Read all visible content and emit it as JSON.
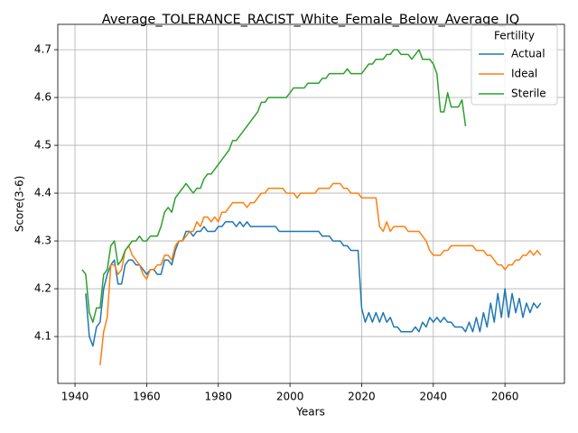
{
  "chart_data": {
    "type": "line",
    "title": "Average_TOLERANCE_RACIST_White_Female_Below_Average_IQ",
    "xlabel": "Years",
    "ylabel": "Score(3-6)",
    "legend_title": "Fertility",
    "legend": "upper right",
    "grid": true,
    "xlim": [
      1935.2,
      2076.6
    ],
    "ylim": [
      4.002,
      4.753
    ],
    "xticks": [
      1940,
      1960,
      1980,
      2000,
      2020,
      2040,
      2060
    ],
    "yticks": [
      4.1,
      4.2,
      4.3,
      4.4,
      4.5,
      4.6,
      4.7
    ],
    "x": [
      1942,
      1943,
      1944,
      1945,
      1946,
      1947,
      1948,
      1949,
      1950,
      1951,
      1952,
      1953,
      1954,
      1955,
      1956,
      1957,
      1958,
      1959,
      1960,
      1961,
      1962,
      1963,
      1964,
      1965,
      1966,
      1967,
      1968,
      1969,
      1970,
      1971,
      1972,
      1973,
      1974,
      1975,
      1976,
      1977,
      1978,
      1979,
      1980,
      1981,
      1982,
      1983,
      1984,
      1985,
      1986,
      1987,
      1988,
      1989,
      1990,
      1991,
      1992,
      1993,
      1994,
      1995,
      1996,
      1997,
      1998,
      1999,
      2000,
      2001,
      2002,
      2003,
      2004,
      2005,
      2006,
      2007,
      2008,
      2009,
      2010,
      2011,
      2012,
      2013,
      2014,
      2015,
      2016,
      2017,
      2018,
      2019,
      2020,
      2021,
      2022,
      2023,
      2024,
      2025,
      2026,
      2027,
      2028,
      2029,
      2030,
      2031,
      2032,
      2033,
      2034,
      2035,
      2036,
      2037,
      2038,
      2039,
      2040,
      2041,
      2042,
      2043,
      2044,
      2045,
      2046,
      2047,
      2048,
      2049,
      2050,
      2051,
      2052,
      2053,
      2054,
      2055,
      2056,
      2057,
      2058,
      2059,
      2060,
      2061,
      2062,
      2063,
      2064,
      2065,
      2066,
      2067,
      2068,
      2069,
      2070
    ],
    "series": [
      {
        "name": "Actual",
        "color": "#1f77b4",
        "values": [
          null,
          4.19,
          4.1,
          4.08,
          4.12,
          4.13,
          4.2,
          4.23,
          4.25,
          4.26,
          4.21,
          4.21,
          4.25,
          4.26,
          4.26,
          4.25,
          4.25,
          4.24,
          4.23,
          4.24,
          4.24,
          4.23,
          4.23,
          4.26,
          4.26,
          4.25,
          4.28,
          4.3,
          4.3,
          4.32,
          4.32,
          4.31,
          4.32,
          4.32,
          4.33,
          4.32,
          4.32,
          4.32,
          4.33,
          4.33,
          4.34,
          4.34,
          4.34,
          4.33,
          4.34,
          4.33,
          4.34,
          4.33,
          4.33,
          4.33,
          4.33,
          4.33,
          4.33,
          4.33,
          4.33,
          4.32,
          4.32,
          4.32,
          4.32,
          4.32,
          4.32,
          4.32,
          4.32,
          4.32,
          4.32,
          4.32,
          4.32,
          4.31,
          4.31,
          4.31,
          4.3,
          4.3,
          4.3,
          4.29,
          4.29,
          4.28,
          4.28,
          4.28,
          4.16,
          4.13,
          4.15,
          4.13,
          4.15,
          4.13,
          4.15,
          4.13,
          4.14,
          4.12,
          4.12,
          4.11,
          4.11,
          4.11,
          4.11,
          4.12,
          4.11,
          4.13,
          4.12,
          4.14,
          4.13,
          4.14,
          4.13,
          4.14,
          4.13,
          4.13,
          4.12,
          4.12,
          4.12,
          4.11,
          4.13,
          4.11,
          4.14,
          4.11,
          4.15,
          4.12,
          4.17,
          4.13,
          4.19,
          4.14,
          4.2,
          4.14,
          4.19,
          4.15,
          4.18,
          4.14,
          4.17,
          4.15,
          4.17,
          4.16,
          4.17
        ]
      },
      {
        "name": "Ideal",
        "color": "#ff7f0e",
        "values": [
          null,
          null,
          null,
          null,
          null,
          4.04,
          4.11,
          4.14,
          4.25,
          4.25,
          4.23,
          4.24,
          4.28,
          4.29,
          4.27,
          4.26,
          4.25,
          4.23,
          4.22,
          4.24,
          4.24,
          4.25,
          4.25,
          4.27,
          4.27,
          4.26,
          4.29,
          4.3,
          4.3,
          4.31,
          4.32,
          4.32,
          4.34,
          4.33,
          4.35,
          4.35,
          4.34,
          4.35,
          4.34,
          4.36,
          4.36,
          4.37,
          4.38,
          4.38,
          4.38,
          4.38,
          4.37,
          4.38,
          4.38,
          4.39,
          4.4,
          4.4,
          4.41,
          4.41,
          4.41,
          4.41,
          4.41,
          4.4,
          4.4,
          4.4,
          4.39,
          4.4,
          4.4,
          4.4,
          4.4,
          4.4,
          4.41,
          4.41,
          4.41,
          4.41,
          4.42,
          4.42,
          4.42,
          4.41,
          4.41,
          4.4,
          4.4,
          4.4,
          4.39,
          4.39,
          4.39,
          4.39,
          4.39,
          4.33,
          4.32,
          4.34,
          4.32,
          4.33,
          4.33,
          4.33,
          4.33,
          4.32,
          4.32,
          4.32,
          4.32,
          4.31,
          4.3,
          4.28,
          4.27,
          4.27,
          4.27,
          4.28,
          4.28,
          4.29,
          4.29,
          4.29,
          4.29,
          4.29,
          4.29,
          4.29,
          4.28,
          4.28,
          4.28,
          4.27,
          4.27,
          4.26,
          4.25,
          4.25,
          4.24,
          4.25,
          4.25,
          4.26,
          4.26,
          4.27,
          4.27,
          4.28,
          4.27,
          4.28,
          4.27
        ]
      },
      {
        "name": "Sterile",
        "color": "#2ca02c",
        "values": [
          4.24,
          4.23,
          4.15,
          4.13,
          4.16,
          4.16,
          4.23,
          4.24,
          4.29,
          4.3,
          4.25,
          4.26,
          4.28,
          4.29,
          4.3,
          4.3,
          4.31,
          4.3,
          4.3,
          4.31,
          4.31,
          4.31,
          4.33,
          4.36,
          4.37,
          4.36,
          4.39,
          4.4,
          4.41,
          4.42,
          4.41,
          4.4,
          4.41,
          4.41,
          4.43,
          4.44,
          4.44,
          4.45,
          4.46,
          4.47,
          4.48,
          4.49,
          4.51,
          4.51,
          4.52,
          4.53,
          4.54,
          4.55,
          4.56,
          4.57,
          4.59,
          4.59,
          4.6,
          4.6,
          4.6,
          4.6,
          4.6,
          4.6,
          4.61,
          4.62,
          4.62,
          4.62,
          4.62,
          4.63,
          4.63,
          4.63,
          4.63,
          4.64,
          4.64,
          4.65,
          4.65,
          4.65,
          4.65,
          4.65,
          4.66,
          4.65,
          4.65,
          4.65,
          4.65,
          4.66,
          4.67,
          4.67,
          4.68,
          4.68,
          4.68,
          4.69,
          4.69,
          4.7,
          4.7,
          4.69,
          4.69,
          4.69,
          4.68,
          4.69,
          4.7,
          4.68,
          4.68,
          4.68,
          4.67,
          4.65,
          4.57,
          4.57,
          4.61,
          4.58,
          4.58,
          4.58,
          4.595,
          4.54,
          null,
          null,
          null,
          null,
          null,
          null,
          null,
          null,
          null,
          null,
          null,
          null,
          null,
          null,
          null,
          null,
          null,
          null,
          null,
          null,
          null
        ]
      }
    ]
  }
}
